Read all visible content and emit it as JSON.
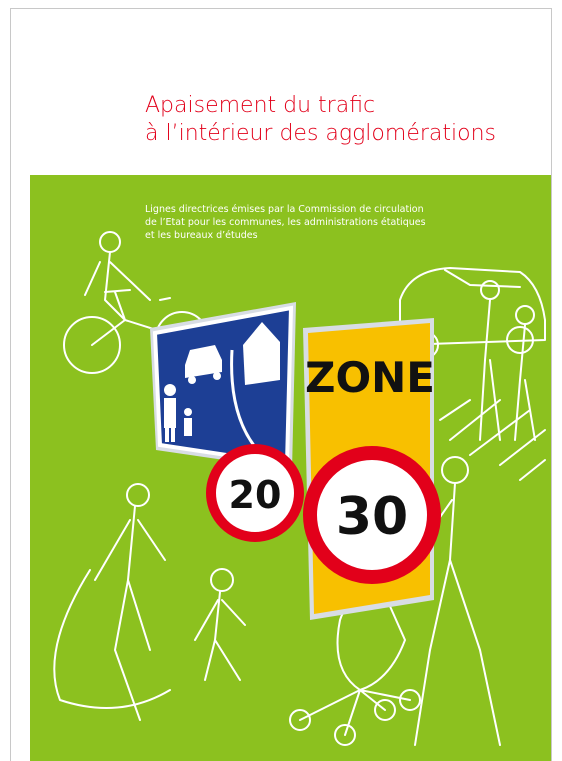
{
  "header": {
    "title_lines": [
      "Apaisement du trafic",
      "à l’intérieur des agglomérations"
    ]
  },
  "subtitle_lines": [
    "Lignes directrices émises par la Commission de circulation",
    "de l’Etat pour les communes, les administrations étatiques",
    "et les bureaux d’études"
  ],
  "signs": {
    "zone": "ZONE",
    "limit_left": 20,
    "limit_right": 30
  }
}
